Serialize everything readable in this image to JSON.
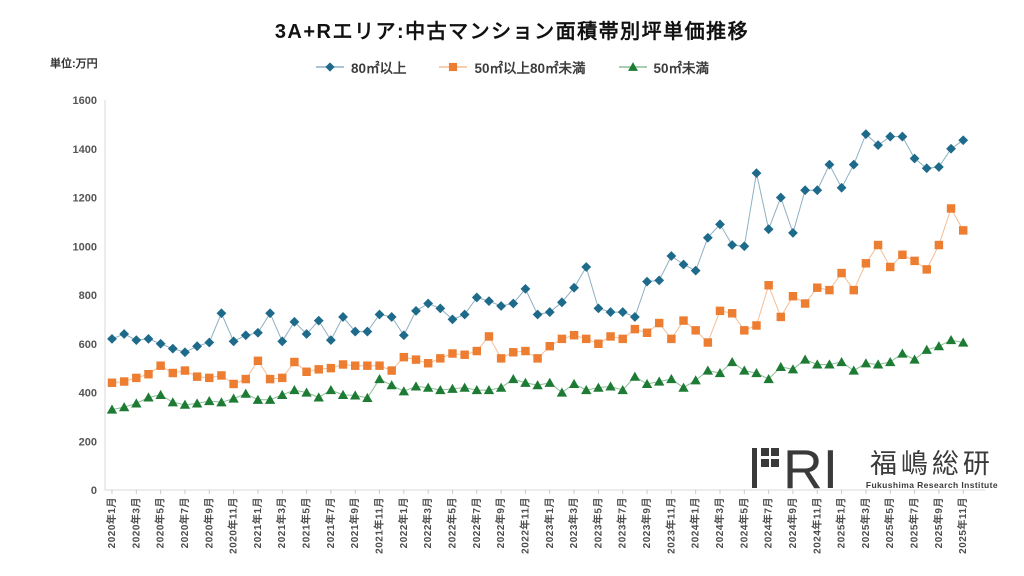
{
  "title": "3A+Rエリア:中古マンション面積帯別坪単価推移",
  "unit_label": "単位:万円",
  "logo": {
    "letters": "RI",
    "kanji": "福嶋総研",
    "en": "Fukushima Research Institute",
    "color": "#3a3a3a"
  },
  "chart_data": {
    "type": "line",
    "title": "3A+Rエリア:中古マンション面積帯別坪単価推移",
    "ylabel": "単位:万円",
    "ylim": [
      0,
      1600
    ],
    "y_ticks": [
      0,
      200,
      400,
      600,
      800,
      1000,
      1200,
      1400,
      1600
    ],
    "grid": false,
    "legend_position": "top",
    "n_points": 71,
    "x_start": "2020年1月",
    "x_end": "2025年11月",
    "x_tick_labels": [
      "2020年1月",
      "2020年3月",
      "2020年5月",
      "2020年7月",
      "2020年9月",
      "2020年11月",
      "2021年1月",
      "2021年3月",
      "2021年5月",
      "2021年7月",
      "2021年9月",
      "2021年11月",
      "2022年1月",
      "2022年3月",
      "2022年5月",
      "2022年7月",
      "2022年9月",
      "2022年11月",
      "2023年1月",
      "2023年3月",
      "2023年5月",
      "2023年7月",
      "2023年9月",
      "2023年11月",
      "2024年1月",
      "2024年3月",
      "2024年5月",
      "2024年7月",
      "2024年9月",
      "2024年11月",
      "2025年1月",
      "2025年3月",
      "2025年5月",
      "2025年7月",
      "2025年9月",
      "2025年11月"
    ],
    "series": [
      {
        "name": "80㎡以上",
        "marker": "diamond",
        "color": "#1d6a8a",
        "line_color": "#8fb0c2",
        "values": [
          620,
          640,
          615,
          620,
          600,
          580,
          565,
          590,
          605,
          725,
          610,
          635,
          645,
          725,
          610,
          690,
          640,
          695,
          615,
          710,
          650,
          650,
          720,
          710,
          635,
          735,
          765,
          745,
          700,
          720,
          790,
          775,
          755,
          765,
          825,
          720,
          730,
          770,
          830,
          915,
          745,
          730,
          730,
          710,
          855,
          860,
          960,
          925,
          900,
          1035,
          1090,
          1005,
          1000,
          1300,
          1070,
          1200,
          1055,
          1230,
          1230,
          1335,
          1240,
          1335,
          1460,
          1415,
          1450,
          1450,
          1360,
          1320,
          1325,
          1400,
          1435
        ]
      },
      {
        "name": "50㎡以上80㎡未満",
        "marker": "square",
        "color": "#ed7d31",
        "line_color": "#f5bd96",
        "values": [
          440,
          445,
          460,
          475,
          510,
          480,
          490,
          465,
          460,
          470,
          435,
          455,
          530,
          455,
          460,
          525,
          485,
          495,
          500,
          515,
          510,
          510,
          510,
          490,
          545,
          535,
          520,
          540,
          560,
          555,
          570,
          630,
          540,
          565,
          570,
          540,
          590,
          620,
          635,
          620,
          600,
          630,
          620,
          660,
          645,
          685,
          620,
          695,
          655,
          605,
          735,
          725,
          655,
          675,
          840,
          710,
          795,
          765,
          830,
          820,
          890,
          820,
          930,
          1005,
          915,
          965,
          940,
          905,
          1005,
          1155,
          1065
        ]
      },
      {
        "name": "50㎡未満",
        "marker": "triangle",
        "color": "#1e7b34",
        "line_color": "#8cbd97",
        "values": [
          330,
          340,
          355,
          380,
          390,
          360,
          350,
          355,
          365,
          360,
          375,
          395,
          370,
          370,
          390,
          410,
          400,
          380,
          410,
          390,
          388,
          378,
          455,
          430,
          405,
          425,
          420,
          410,
          415,
          420,
          410,
          410,
          420,
          455,
          440,
          430,
          440,
          400,
          435,
          410,
          420,
          425,
          410,
          465,
          435,
          445,
          455,
          420,
          450,
          490,
          480,
          525,
          490,
          480,
          455,
          505,
          495,
          535,
          515,
          515,
          525,
          490,
          520,
          515,
          525,
          560,
          535,
          575,
          590,
          615,
          605
        ]
      }
    ],
    "axis_color": "#d9d9d9",
    "tick_color": "#c9c9c9"
  }
}
